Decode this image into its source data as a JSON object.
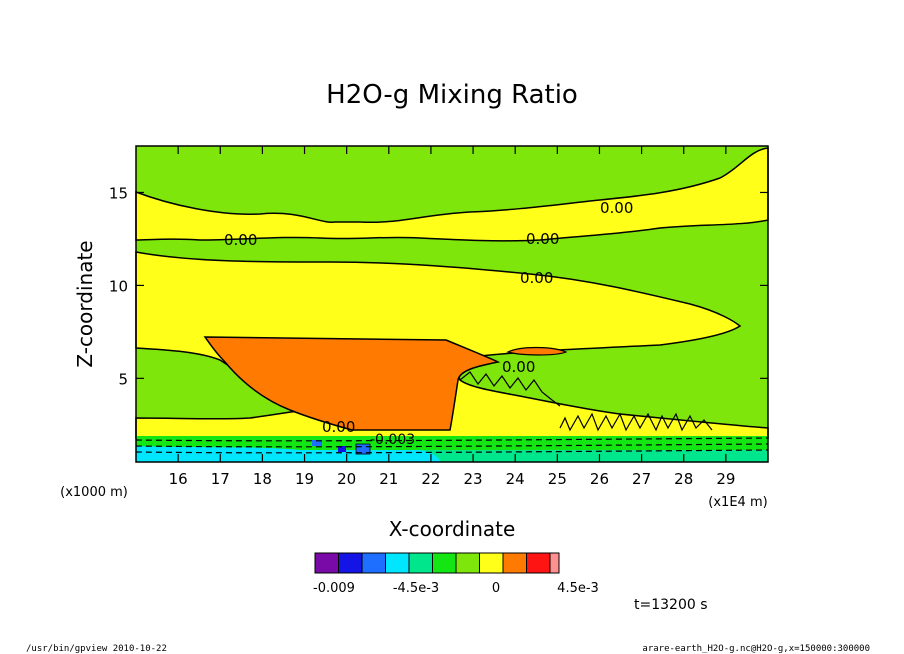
{
  "chart_data": {
    "type": "heatmap",
    "title": "H2O-g Mixing Ratio",
    "xlabel": "X-coordinate",
    "ylabel": "Z-coordinate",
    "x_unit": "(x1E4 m)",
    "y_unit": "(x1000 m)",
    "xlim": [
      15.0,
      30.0
    ],
    "ylim": [
      0.5,
      17.5
    ],
    "x_ticks": [
      "16",
      "17",
      "18",
      "19",
      "20",
      "21",
      "22",
      "23",
      "24",
      "25",
      "26",
      "27",
      "28",
      "29"
    ],
    "y_ticks": [
      "5",
      "10",
      "15"
    ],
    "contour_labels": [
      "0.00",
      "0.00",
      "0.00",
      "0.00",
      "0.00",
      "0.00",
      "-0.003"
    ],
    "colorbar": {
      "tick_labels": [
        "-0.009",
        "-4.5e-3",
        "0",
        "4.5e-3"
      ],
      "colors": [
        "#7a0aa8",
        "#1414e6",
        "#1e6eff",
        "#00e6ff",
        "#00e68c",
        "#14e614",
        "#7ee60a",
        "#ffff19",
        "#ff7a00",
        "#ff1414",
        "#ff9090"
      ]
    },
    "time_label": "t=13200 s"
  },
  "footer": {
    "left": "/usr/bin/gpview  2010-10-22",
    "right": "arare-earth_H2O-g.nc@H2O-g,x=150000:300000"
  }
}
